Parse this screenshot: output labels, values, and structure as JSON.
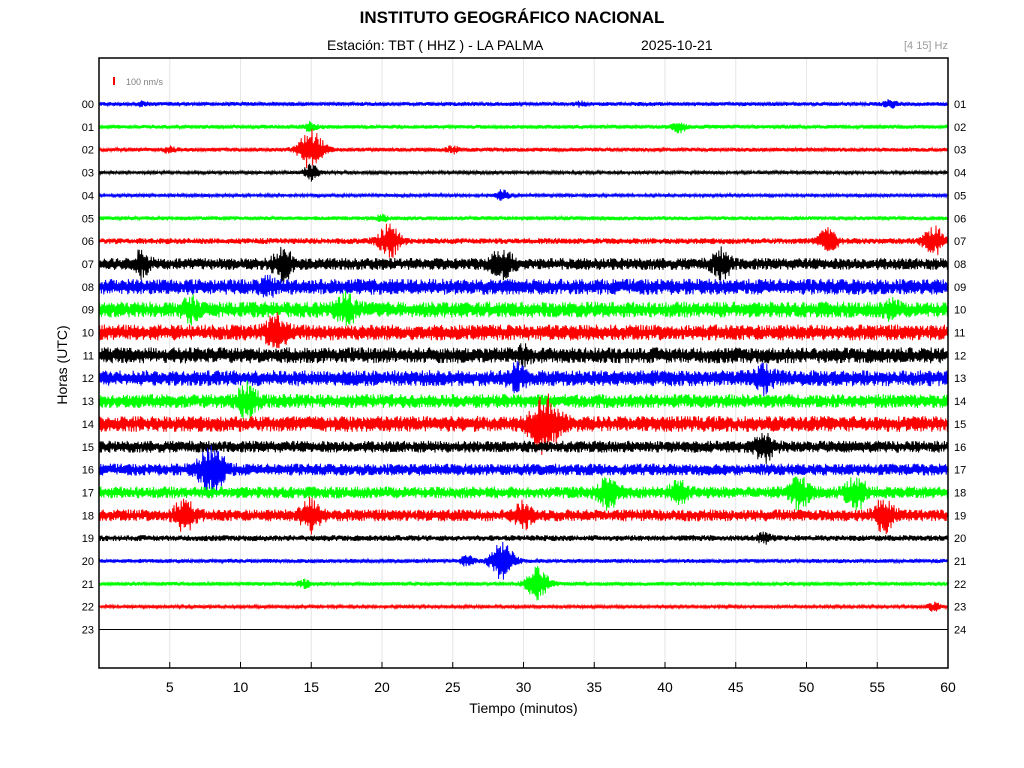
{
  "header": {
    "title": "INSTITUTO GEOGRÁFICO NACIONAL",
    "station": "Estación:  TBT ( HHZ ) - LA PALMA",
    "date": "2025-10-21",
    "filter": "[4 15] Hz"
  },
  "chart_data": {
    "type": "line",
    "title": "INSTITUTO GEOGRÁFICO NACIONAL",
    "xlabel": "Tiempo (minutos)",
    "ylabel": "Horas (UTC)",
    "xlim": [
      0,
      60
    ],
    "x_ticks": [
      5,
      10,
      15,
      20,
      25,
      30,
      35,
      40,
      45,
      50,
      55,
      60
    ],
    "hours_left": [
      "00",
      "01",
      "02",
      "03",
      "04",
      "05",
      "06",
      "07",
      "08",
      "09",
      "10",
      "11",
      "12",
      "13",
      "14",
      "15",
      "16",
      "17",
      "18",
      "19",
      "20",
      "21",
      "22",
      "23"
    ],
    "hours_right": [
      "01",
      "02",
      "03",
      "04",
      "05",
      "06",
      "07",
      "08",
      "09",
      "10",
      "11",
      "12",
      "13",
      "14",
      "15",
      "16",
      "17",
      "18",
      "19",
      "20",
      "21",
      "22",
      "23",
      "24"
    ],
    "scale_label": "100 nm/s",
    "grid": true,
    "colors": [
      "#0000ff",
      "#00ff00",
      "#ff0000",
      "#000000"
    ],
    "series": [
      {
        "hour": 0,
        "amplitude": 2,
        "events": [
          [
            3,
            2
          ],
          [
            34,
            2
          ],
          [
            56,
            4
          ]
        ]
      },
      {
        "hour": 1,
        "amplitude": 2,
        "events": [
          [
            15,
            5
          ],
          [
            41,
            5
          ]
        ]
      },
      {
        "hour": 2,
        "amplitude": 2,
        "events": [
          [
            15,
            20
          ],
          [
            5,
            3
          ],
          [
            25,
            3
          ]
        ]
      },
      {
        "hour": 3,
        "amplitude": 1.5,
        "events": [
          [
            15,
            8
          ]
        ]
      },
      {
        "hour": 4,
        "amplitude": 1.5,
        "events": [
          [
            28.5,
            5
          ]
        ]
      },
      {
        "hour": 5,
        "amplitude": 2,
        "events": [
          [
            20,
            3
          ]
        ]
      },
      {
        "hour": 6,
        "amplitude": 3,
        "events": [
          [
            20.5,
            16
          ],
          [
            51.5,
            12
          ],
          [
            59,
            14
          ]
        ]
      },
      {
        "hour": 7,
        "amplitude": 6,
        "events": [
          [
            3,
            10
          ],
          [
            13,
            14
          ],
          [
            28.5,
            14
          ],
          [
            44,
            12
          ]
        ]
      },
      {
        "hour": 8,
        "amplitude": 8,
        "events": [
          [
            12,
            5
          ]
        ]
      },
      {
        "hour": 9,
        "amplitude": 8,
        "events": [
          [
            6.5,
            8
          ],
          [
            17.5,
            12
          ],
          [
            56,
            6
          ]
        ]
      },
      {
        "hour": 10,
        "amplitude": 8,
        "events": [
          [
            12.5,
            14
          ]
        ]
      },
      {
        "hour": 11,
        "amplitude": 8,
        "events": [
          [
            30,
            5
          ]
        ]
      },
      {
        "hour": 12,
        "amplitude": 8,
        "events": [
          [
            29.5,
            10
          ],
          [
            47,
            10
          ]
        ]
      },
      {
        "hour": 13,
        "amplitude": 7,
        "events": [
          [
            10.5,
            14
          ]
        ]
      },
      {
        "hour": 14,
        "amplitude": 8,
        "events": [
          [
            31.5,
            25
          ]
        ]
      },
      {
        "hour": 15,
        "amplitude": 6,
        "events": [
          [
            47,
            12
          ]
        ]
      },
      {
        "hour": 16,
        "amplitude": 6,
        "events": [
          [
            8,
            22
          ]
        ]
      },
      {
        "hour": 17,
        "amplitude": 6,
        "events": [
          [
            36,
            14
          ],
          [
            41,
            10
          ],
          [
            49.5,
            14
          ],
          [
            53.5,
            14
          ]
        ]
      },
      {
        "hour": 18,
        "amplitude": 6,
        "events": [
          [
            6,
            14
          ],
          [
            15,
            14
          ],
          [
            30,
            10
          ],
          [
            55.5,
            14
          ]
        ]
      },
      {
        "hour": 19,
        "amplitude": 3,
        "events": [
          [
            47,
            4
          ]
        ]
      },
      {
        "hour": 20,
        "amplitude": 2,
        "events": [
          [
            26,
            5
          ],
          [
            28.5,
            18
          ]
        ]
      },
      {
        "hour": 21,
        "amplitude": 2,
        "events": [
          [
            14.5,
            4
          ],
          [
            31,
            16
          ]
        ]
      },
      {
        "hour": 22,
        "amplitude": 1.5,
        "events": [
          [
            59,
            4
          ]
        ]
      },
      {
        "hour": 23,
        "amplitude": 0,
        "events": []
      }
    ]
  }
}
